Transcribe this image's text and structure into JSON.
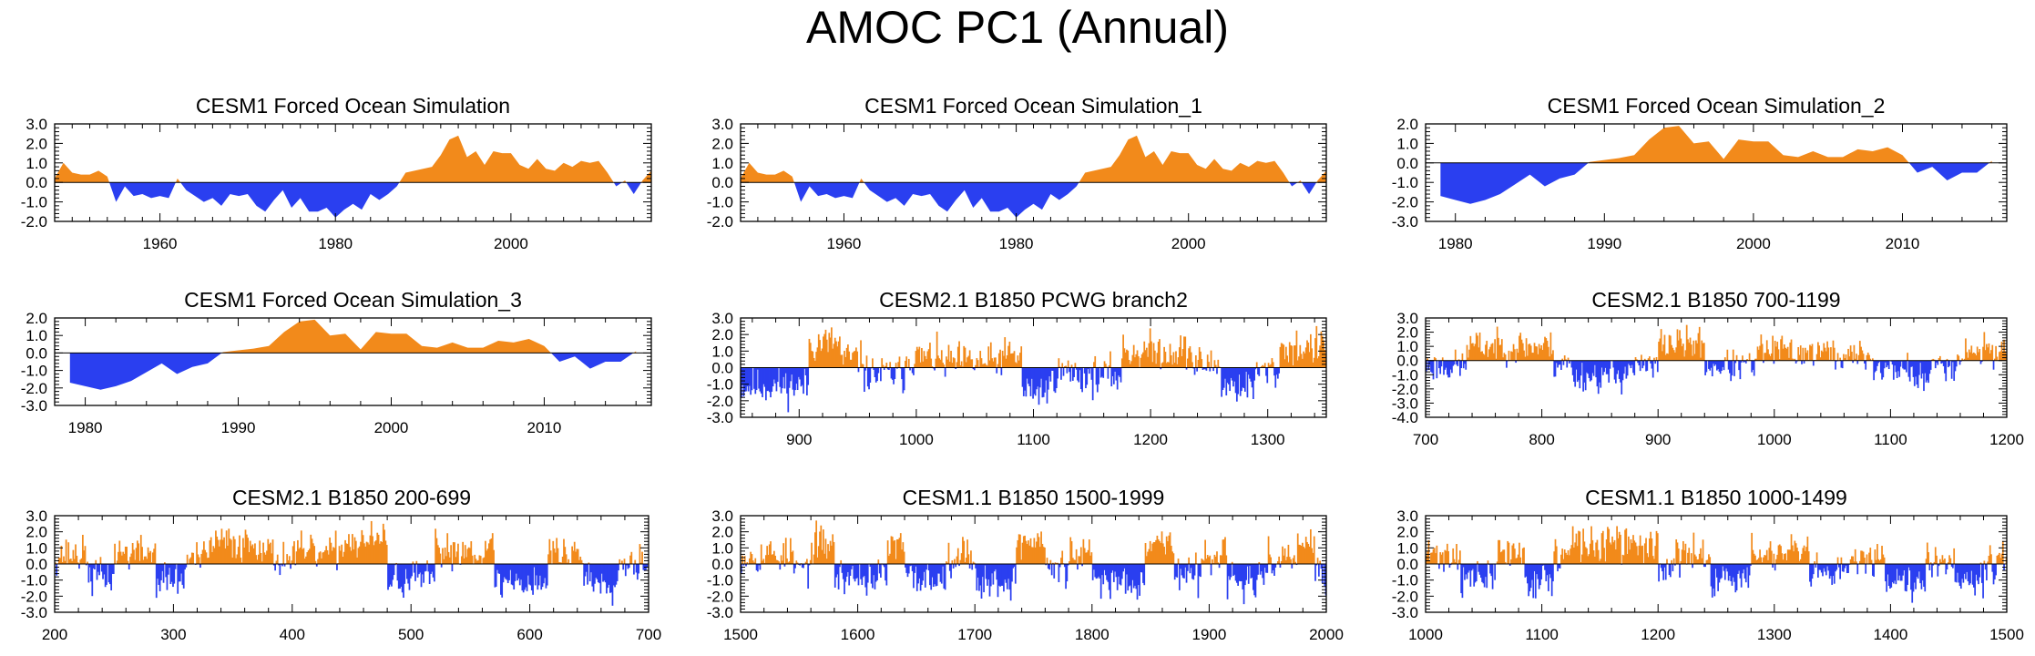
{
  "title": "AMOC PC1 (Annual)",
  "colors": {
    "positive": "#f28a1b",
    "negative": "#2a3ff0",
    "axis": "#000000"
  },
  "chart_data": [
    {
      "type": "area",
      "title": "CESM1 Forced Ocean Simulation",
      "xlim": [
        1948,
        2016
      ],
      "ylim": [
        -2.0,
        3.0
      ],
      "yticks": [
        "3.0",
        "2.0",
        "1.0",
        "0.0",
        "-1.0",
        "-2.0"
      ],
      "yticks_values": [
        3,
        2,
        1,
        0,
        -1,
        -2
      ],
      "xticks": [
        "1960",
        "1980",
        "2000"
      ],
      "xticks_values": [
        1960,
        1980,
        2000
      ],
      "series": {
        "x_start": 1948,
        "step": 1,
        "values": [
          0.2,
          1.0,
          0.5,
          0.4,
          0.4,
          0.6,
          0.3,
          -1.0,
          -0.2,
          -0.7,
          -0.6,
          -0.8,
          -0.7,
          -0.8,
          0.2,
          -0.4,
          -0.7,
          -1.0,
          -0.8,
          -1.2,
          -0.6,
          -0.7,
          -0.6,
          -1.2,
          -1.5,
          -0.9,
          -0.4,
          -1.3,
          -0.8,
          -1.5,
          -1.5,
          -1.3,
          -1.8,
          -1.4,
          -1.1,
          -1.4,
          -0.6,
          -0.9,
          -0.6,
          -0.2,
          0.5,
          0.6,
          0.7,
          0.8,
          1.4,
          2.2,
          2.4,
          1.3,
          1.6,
          0.9,
          1.6,
          1.5,
          1.5,
          0.9,
          0.7,
          1.2,
          0.7,
          0.6,
          1.0,
          0.8,
          1.1,
          1.0,
          1.1,
          0.5,
          -0.2,
          0.1,
          -0.6,
          0.1,
          0.6
        ]
      }
    },
    {
      "type": "area",
      "title": "CESM1 Forced Ocean Simulation_1",
      "xlim": [
        1948,
        2016
      ],
      "ylim": [
        -2.0,
        3.0
      ],
      "yticks": [
        "3.0",
        "2.0",
        "1.0",
        "0.0",
        "-1.0",
        "-2.0"
      ],
      "yticks_values": [
        3,
        2,
        1,
        0,
        -1,
        -2
      ],
      "xticks": [
        "1960",
        "1980",
        "2000"
      ],
      "xticks_values": [
        1960,
        1980,
        2000
      ],
      "series": {
        "x_start": 1948,
        "step": 1,
        "values": [
          0.2,
          1.0,
          0.5,
          0.4,
          0.4,
          0.6,
          0.3,
          -1.0,
          -0.2,
          -0.7,
          -0.6,
          -0.8,
          -0.7,
          -0.8,
          0.2,
          -0.4,
          -0.7,
          -1.0,
          -0.8,
          -1.2,
          -0.6,
          -0.7,
          -0.6,
          -1.2,
          -1.5,
          -0.9,
          -0.4,
          -1.3,
          -0.8,
          -1.5,
          -1.5,
          -1.3,
          -1.8,
          -1.4,
          -1.1,
          -1.4,
          -0.6,
          -0.9,
          -0.6,
          -0.2,
          0.5,
          0.6,
          0.7,
          0.8,
          1.4,
          2.2,
          2.4,
          1.3,
          1.6,
          0.9,
          1.6,
          1.5,
          1.5,
          0.9,
          0.7,
          1.2,
          0.7,
          0.6,
          1.0,
          0.8,
          1.1,
          1.0,
          1.1,
          0.5,
          -0.2,
          0.1,
          -0.6,
          0.1,
          0.6
        ]
      }
    },
    {
      "type": "area",
      "title": "CESM1 Forced Ocean Simulation_2",
      "xlim": [
        1978,
        2017
      ],
      "ylim": [
        -3.0,
        2.0
      ],
      "yticks": [
        "2.0",
        "1.0",
        "0.0",
        "-1.0",
        "-2.0",
        "-3.0"
      ],
      "yticks_values": [
        2,
        1,
        0,
        -1,
        -2,
        -3
      ],
      "xticks": [
        "1980",
        "1990",
        "2000",
        "2010"
      ],
      "xticks_values": [
        1980,
        1990,
        2000,
        2010
      ],
      "series": {
        "x_start": 1979,
        "step": 1,
        "values": [
          -1.7,
          -1.9,
          -2.1,
          -1.9,
          -1.6,
          -1.1,
          -0.6,
          -1.2,
          -0.8,
          -0.6,
          0.05,
          0.15,
          0.25,
          0.4,
          1.2,
          1.8,
          1.9,
          1.0,
          1.1,
          0.2,
          1.2,
          1.1,
          1.1,
          0.4,
          0.3,
          0.6,
          0.3,
          0.3,
          0.7,
          0.6,
          0.8,
          0.4,
          -0.5,
          -0.2,
          -0.9,
          -0.5,
          -0.5,
          0.1
        ]
      }
    },
    {
      "type": "area",
      "title": "CESM1 Forced Ocean Simulation_3",
      "xlim": [
        1978,
        2017
      ],
      "ylim": [
        -3.0,
        2.0
      ],
      "yticks": [
        "2.0",
        "1.0",
        "0.0",
        "-1.0",
        "-2.0",
        "-3.0"
      ],
      "yticks_values": [
        2,
        1,
        0,
        -1,
        -2,
        -3
      ],
      "xticks": [
        "1980",
        "1990",
        "2000",
        "2010"
      ],
      "xticks_values": [
        1980,
        1990,
        2000,
        2010
      ],
      "series": {
        "x_start": 1979,
        "step": 1,
        "values": [
          -1.7,
          -1.9,
          -2.1,
          -1.9,
          -1.6,
          -1.1,
          -0.6,
          -1.2,
          -0.8,
          -0.6,
          0.05,
          0.15,
          0.25,
          0.4,
          1.2,
          1.8,
          1.9,
          1.0,
          1.1,
          0.2,
          1.2,
          1.1,
          1.1,
          0.4,
          0.3,
          0.6,
          0.3,
          0.3,
          0.7,
          0.6,
          0.8,
          0.4,
          -0.5,
          -0.2,
          -0.9,
          -0.5,
          -0.5,
          0.1
        ]
      }
    },
    {
      "type": "bar",
      "title": "CESM2.1 B1850 PCWG branch2",
      "xlim": [
        850,
        1350
      ],
      "ylim": [
        -3.0,
        3.0
      ],
      "yticks": [
        "3.0",
        "2.0",
        "1.0",
        "0.0",
        "-1.0",
        "-2.0",
        "-3.0"
      ],
      "yticks_values": [
        3,
        2,
        1,
        0,
        -1,
        -2,
        -3
      ],
      "xticks": [
        "900",
        "1000",
        "1100",
        "1200",
        "1300"
      ],
      "xticks_values": [
        900,
        1000,
        1100,
        1200,
        1300
      ],
      "series": {
        "x_start": 850,
        "x_end": 1350,
        "seed": 11,
        "regimes": [
          [
            850,
            908,
            -1.1
          ],
          [
            908,
            935,
            1.5
          ],
          [
            935,
            955,
            0.5
          ],
          [
            955,
            990,
            -0.4
          ],
          [
            990,
            1020,
            0.6
          ],
          [
            1020,
            1070,
            0.3
          ],
          [
            1070,
            1090,
            0.7
          ],
          [
            1090,
            1115,
            -1.4
          ],
          [
            1115,
            1140,
            -0.3
          ],
          [
            1140,
            1175,
            -0.5
          ],
          [
            1175,
            1235,
            1.0
          ],
          [
            1235,
            1260,
            0.2
          ],
          [
            1260,
            1290,
            -1.1
          ],
          [
            1290,
            1310,
            -0.2
          ],
          [
            1310,
            1350,
            1.2
          ]
        ]
      }
    },
    {
      "type": "bar",
      "title": "CESM2.1 B1850 700-1199",
      "xlim": [
        700,
        1200
      ],
      "ylim": [
        -4.0,
        3.0
      ],
      "yticks": [
        "3.0",
        "2.0",
        "1.0",
        "0.0",
        "-1.0",
        "-2.0",
        "-3.0",
        "-4.0"
      ],
      "yticks_values": [
        3,
        2,
        1,
        0,
        -1,
        -2,
        -3,
        -4
      ],
      "xticks": [
        "700",
        "800",
        "900",
        "1000",
        "1100",
        "1200"
      ],
      "xticks_values": [
        700,
        800,
        900,
        1000,
        1100,
        1200
      ],
      "series": {
        "x_start": 700,
        "x_end": 1200,
        "seed": 23,
        "regimes": [
          [
            700,
            735,
            -0.4
          ],
          [
            735,
            810,
            1.0
          ],
          [
            810,
            825,
            -0.2
          ],
          [
            825,
            870,
            -1.1
          ],
          [
            870,
            900,
            -0.5
          ],
          [
            900,
            940,
            1.2
          ],
          [
            940,
            985,
            -0.4
          ],
          [
            985,
            1010,
            0.7
          ],
          [
            1010,
            1050,
            0.6
          ],
          [
            1050,
            1085,
            0.3
          ],
          [
            1085,
            1120,
            -0.6
          ],
          [
            1120,
            1135,
            -1.4
          ],
          [
            1135,
            1160,
            -0.2
          ],
          [
            1160,
            1200,
            0.7
          ]
        ]
      }
    },
    {
      "type": "bar",
      "title": "CESM2.1 B1850 200-699",
      "xlim": [
        200,
        700
      ],
      "ylim": [
        -3.0,
        3.0
      ],
      "yticks": [
        "3.0",
        "2.0",
        "1.0",
        "0.0",
        "-1.0",
        "-2.0",
        "-3.0"
      ],
      "yticks_values": [
        3,
        2,
        1,
        0,
        -1,
        -2,
        -3
      ],
      "xticks": [
        "200",
        "300",
        "400",
        "500",
        "600",
        "700"
      ],
      "xticks_values": [
        200,
        300,
        400,
        500,
        600,
        700
      ],
      "series": {
        "x_start": 200,
        "x_end": 700,
        "seed": 37,
        "regimes": [
          [
            200,
            228,
            0.6
          ],
          [
            228,
            250,
            -0.8
          ],
          [
            250,
            285,
            0.7
          ],
          [
            285,
            310,
            -1.0
          ],
          [
            310,
            330,
            0.3
          ],
          [
            330,
            380,
            1.3
          ],
          [
            380,
            400,
            0.4
          ],
          [
            400,
            440,
            0.6
          ],
          [
            440,
            480,
            1.4
          ],
          [
            480,
            520,
            -1.0
          ],
          [
            520,
            570,
            0.9
          ],
          [
            570,
            615,
            -1.1
          ],
          [
            615,
            645,
            0.7
          ],
          [
            645,
            675,
            -1.0
          ],
          [
            675,
            700,
            0.2
          ]
        ]
      }
    },
    {
      "type": "bar",
      "title": "CESM1.1 B1850 1500-1999",
      "xlim": [
        1500,
        2000
      ],
      "ylim": [
        -3.0,
        3.0
      ],
      "yticks": [
        "3.0",
        "2.0",
        "1.0",
        "0.0",
        "-1.0",
        "-2.0",
        "-3.0"
      ],
      "yticks_values": [
        3,
        2,
        1,
        0,
        -1,
        -2,
        -3
      ],
      "xticks": [
        "1500",
        "1600",
        "1700",
        "1800",
        "1900",
        "2000"
      ],
      "xticks_values": [
        1500,
        1600,
        1700,
        1800,
        1900,
        2000
      ],
      "series": {
        "x_start": 1500,
        "x_end": 2000,
        "seed": 53,
        "regimes": [
          [
            1500,
            1545,
            0.6
          ],
          [
            1545,
            1560,
            -0.3
          ],
          [
            1560,
            1580,
            1.2
          ],
          [
            1580,
            1625,
            -0.8
          ],
          [
            1625,
            1640,
            1.1
          ],
          [
            1640,
            1675,
            -0.9
          ],
          [
            1675,
            1700,
            0.6
          ],
          [
            1700,
            1735,
            -1.1
          ],
          [
            1735,
            1760,
            1.4
          ],
          [
            1760,
            1780,
            -0.3
          ],
          [
            1780,
            1800,
            0.5
          ],
          [
            1800,
            1845,
            -1.0
          ],
          [
            1845,
            1870,
            1.4
          ],
          [
            1870,
            1895,
            -0.7
          ],
          [
            1895,
            1915,
            0.7
          ],
          [
            1915,
            1950,
            -1.1
          ],
          [
            1950,
            1975,
            0.3
          ],
          [
            1975,
            1990,
            1.3
          ],
          [
            1990,
            2000,
            -0.8
          ]
        ]
      }
    },
    {
      "type": "bar",
      "title": "CESM1.1 B1850 1000-1499",
      "xlim": [
        1000,
        1500
      ],
      "ylim": [
        -3.0,
        3.0
      ],
      "yticks": [
        "3.0",
        "2.0",
        "1.0",
        "0.0",
        "-1.0",
        "-2.0",
        "-3.0"
      ],
      "yticks_values": [
        3,
        2,
        1,
        0,
        -1,
        -2,
        -3
      ],
      "xticks": [
        "1000",
        "1100",
        "1200",
        "1300",
        "1400",
        "1500"
      ],
      "xticks_values": [
        1000,
        1100,
        1200,
        1300,
        1400,
        1500
      ],
      "series": {
        "x_start": 1000,
        "x_end": 1500,
        "seed": 71,
        "regimes": [
          [
            1000,
            1030,
            0.6
          ],
          [
            1030,
            1060,
            -0.9
          ],
          [
            1060,
            1085,
            0.7
          ],
          [
            1085,
            1110,
            -1.0
          ],
          [
            1110,
            1125,
            0.5
          ],
          [
            1125,
            1200,
            1.2
          ],
          [
            1200,
            1215,
            -0.3
          ],
          [
            1215,
            1245,
            0.5
          ],
          [
            1245,
            1280,
            -0.9
          ],
          [
            1280,
            1330,
            0.6
          ],
          [
            1330,
            1365,
            -0.7
          ],
          [
            1365,
            1395,
            0.5
          ],
          [
            1395,
            1430,
            -0.9
          ],
          [
            1430,
            1455,
            0.3
          ],
          [
            1455,
            1480,
            -0.8
          ],
          [
            1480,
            1500,
            0.2
          ]
        ]
      }
    }
  ]
}
